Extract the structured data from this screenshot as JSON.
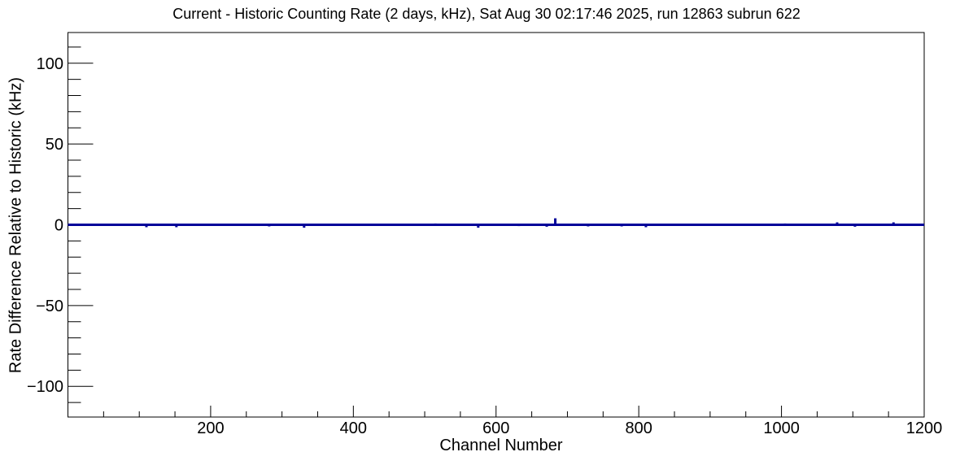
{
  "figure": {
    "background": "#ffffff"
  },
  "chart_data": {
    "type": "line",
    "title": "Current - Historic Counting Rate (2 days, kHz), Sat Aug 30 02:17:46 2025, run 12863 subrun 622",
    "xlabel": "Channel Number",
    "ylabel": "Rate Difference Relative to Historic (kHz)",
    "xlim": [
      0,
      1200
    ],
    "ylim": [
      -119,
      119
    ],
    "grid": false,
    "legend": "none",
    "axis_color": "#000000",
    "line_color": "#000099",
    "x_ticks": [
      {
        "value": 200,
        "label": "200"
      },
      {
        "value": 400,
        "label": "400"
      },
      {
        "value": 600,
        "label": "600"
      },
      {
        "value": 800,
        "label": "800"
      },
      {
        "value": 1000,
        "label": "1000"
      },
      {
        "value": 1200,
        "label": "1200"
      }
    ],
    "x_minor_tick_step": 50,
    "y_ticks": [
      {
        "value": 100,
        "label": "100"
      },
      {
        "value": 50,
        "label": "50"
      },
      {
        "value": 0,
        "label": "0"
      },
      {
        "value": -50,
        "label": "−50"
      },
      {
        "value": -100,
        "label": "−100"
      }
    ],
    "y_minor_tick_step": 10,
    "series": [
      {
        "name": "rate-difference-vs-channel",
        "baseline_value": 0,
        "spikes": [
          {
            "channel": 110,
            "value": -1.5
          },
          {
            "channel": 152,
            "value": -1.5
          },
          {
            "channel": 282,
            "value": -1.0
          },
          {
            "channel": 331,
            "value": -1.8
          },
          {
            "channel": 515,
            "value": 0.8
          },
          {
            "channel": 575,
            "value": -1.8
          },
          {
            "channel": 632,
            "value": -0.8
          },
          {
            "channel": 671,
            "value": -1.2
          },
          {
            "channel": 683,
            "value": 4.0
          },
          {
            "channel": 729,
            "value": -1.0
          },
          {
            "channel": 776,
            "value": -1.0
          },
          {
            "channel": 810,
            "value": -1.5
          },
          {
            "channel": 1005,
            "value": 0.8
          },
          {
            "channel": 1078,
            "value": 1.5
          },
          {
            "channel": 1103,
            "value": -1.2
          },
          {
            "channel": 1157,
            "value": 1.5
          }
        ]
      }
    ]
  }
}
